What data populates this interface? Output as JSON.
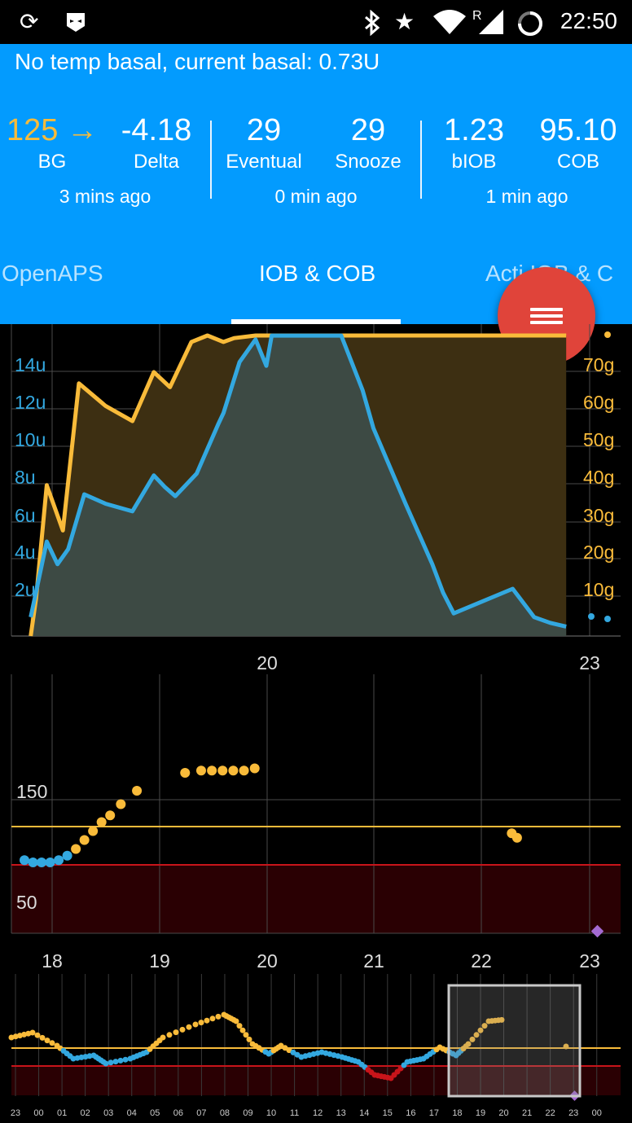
{
  "status_bar": {
    "time": "22:50",
    "left_icons": [
      "sync-icon",
      "app-notification-icon"
    ],
    "right_icons": [
      "bluetooth-icon",
      "star-icon",
      "wifi-icon",
      "signal-roaming-icon",
      "battery-ring-icon"
    ],
    "roaming_label": "R"
  },
  "header": {
    "basal_text": "No temp basal, current basal: 0.73U",
    "bg": {
      "value": "125",
      "arrow": "→",
      "label": "BG",
      "color": "#f9bb3a"
    },
    "delta": {
      "value": "-4.18",
      "label": "Delta"
    },
    "bg_ago": "3 mins ago",
    "eventual": {
      "value": "29",
      "label": "Eventual"
    },
    "snooze": {
      "value": "29",
      "label": "Snooze"
    },
    "loop_ago": "0 min ago",
    "biob": {
      "value": "1.23",
      "label": "bIOB"
    },
    "cob": {
      "value": "95.10",
      "label": "COB"
    },
    "iob_ago": "1 min ago"
  },
  "tabs": [
    {
      "label": "OpenAPS",
      "active": false
    },
    {
      "label": "IOB & COB",
      "active": true
    },
    {
      "label": "Activity IOB & COB",
      "visible_text": "Acti  IOB & C",
      "active": false
    }
  ],
  "fab": {
    "icon": "menu-icon"
  },
  "iob_cob_chart": {
    "iob_axis_labels": [
      "14u",
      "12u",
      "10u",
      "8u",
      "6u",
      "4u",
      "2u"
    ],
    "cob_axis_labels": [
      "70g",
      "60g",
      "50g",
      "40g",
      "30g",
      "20g",
      "10g"
    ],
    "x_labels": [
      "20",
      "23"
    ],
    "colors": {
      "iob": "#33a8e0",
      "cob": "#f9bb3a",
      "iob_fill": "#3d4a44",
      "cob_fill": "#3d2f12"
    }
  },
  "bg_chart": {
    "y_labels": [
      "150",
      "50"
    ],
    "x_labels": [
      "18",
      "19",
      "20",
      "21",
      "22",
      "23"
    ],
    "colors": {
      "high_line": "#f9bb3a",
      "low_line": "#c8141a",
      "low_zone": "#2a0003",
      "in_range": "#33a8e0",
      "high": "#f9bb3a",
      "marker": "#a46ad2"
    }
  },
  "preview_chart": {
    "x_labels": [
      "23",
      "00",
      "01",
      "02",
      "03",
      "04",
      "05",
      "06",
      "07",
      "08",
      "09",
      "10",
      "11",
      "12",
      "13",
      "14",
      "15",
      "16",
      "17",
      "18",
      "19",
      "20",
      "21",
      "22",
      "23",
      "00"
    ],
    "colors": {
      "high_line": "#f9bb3a",
      "low_line": "#c8141a",
      "low": "#c8141a",
      "viewport": "#c8c8c8"
    }
  },
  "chart_data": [
    {
      "type": "area",
      "title": "",
      "x_ticks": [
        "20",
        "23"
      ],
      "y_left_unit": "u",
      "y_left_ticks": [
        2,
        4,
        6,
        8,
        10,
        12,
        14
      ],
      "y_right_unit": "g",
      "y_right_ticks": [
        10,
        20,
        30,
        40,
        50,
        60,
        70
      ],
      "series": [
        {
          "name": "IOB",
          "x": [
            17.8,
            17.95,
            18.05,
            18.15,
            18.3,
            18.5,
            18.75,
            18.95,
            19.05,
            19.15,
            19.35,
            19.55,
            19.6,
            19.75,
            19.9,
            20.0,
            20.05,
            20.25,
            20.4,
            20.55,
            20.7,
            20.9,
            21.0,
            21.3,
            21.55,
            21.65,
            21.75,
            22.3,
            22.5,
            22.65,
            22.8
          ],
          "values": [
            1.0,
            5.0,
            3.8,
            4.6,
            7.5,
            7.0,
            6.6,
            8.5,
            7.9,
            7.4,
            8.6,
            11.2,
            11.8,
            14.5,
            15.7,
            14.3,
            15.9,
            15.9,
            15.9,
            15.9,
            15.9,
            13.0,
            11.0,
            7.0,
            3.8,
            2.3,
            1.2,
            2.5,
            1.0,
            0.7,
            0.5
          ]
        },
        {
          "name": "COB",
          "x": [
            17.8,
            17.85,
            17.95,
            18.1,
            18.25,
            18.5,
            18.75,
            18.95,
            19.1,
            19.3,
            19.45,
            19.6,
            19.7,
            19.9,
            20.5,
            21.0,
            22.0,
            22.8
          ],
          "values": [
            0,
            10,
            40,
            28,
            67,
            61,
            57,
            70,
            66,
            78,
            82,
            78,
            79,
            85,
            85,
            85,
            85,
            85
          ]
        }
      ]
    },
    {
      "type": "scatter",
      "title": "",
      "x_ticks": [
        "18",
        "19",
        "20",
        "21",
        "22",
        "23"
      ],
      "y_ticks": [
        50,
        150
      ],
      "high_line": 122,
      "low_line": 98,
      "series": [
        {
          "name": "BG",
          "x": [
            18.0,
            18.08,
            18.16,
            18.24,
            18.32,
            18.4,
            18.48,
            18.56,
            18.64,
            18.72,
            18.8,
            18.9,
            19.05,
            19.5,
            19.65,
            19.75,
            19.85,
            19.95,
            20.05,
            20.15,
            22.55,
            22.6
          ],
          "values": [
            107,
            106,
            106,
            106,
            107,
            109,
            112,
            116,
            120,
            124,
            127,
            132,
            138,
            146,
            147,
            147,
            147,
            147,
            147,
            148,
            119,
            117
          ]
        }
      ]
    }
  ]
}
